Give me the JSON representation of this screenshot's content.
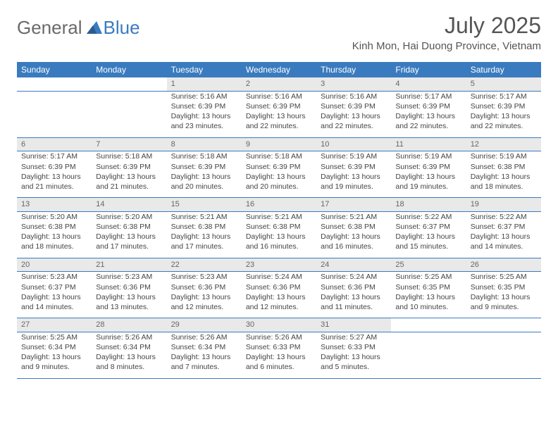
{
  "logo": {
    "general": "General",
    "blue": "Blue"
  },
  "title": "July 2025",
  "location": "Kinh Mon, Hai Duong Province, Vietnam",
  "colors": {
    "header_bg": "#3a7bbf",
    "daynum_bg": "#e9e9e9",
    "border": "#3a7bbf",
    "text": "#444444",
    "title_text": "#555555",
    "logo_gray": "#6a6a6a",
    "logo_blue": "#3a7bbf",
    "background": "#ffffff"
  },
  "weekdays": [
    "Sunday",
    "Monday",
    "Tuesday",
    "Wednesday",
    "Thursday",
    "Friday",
    "Saturday"
  ],
  "weeks": [
    [
      null,
      null,
      {
        "n": "1",
        "sr": "5:16 AM",
        "ss": "6:39 PM",
        "dl": "13 hours and 23 minutes."
      },
      {
        "n": "2",
        "sr": "5:16 AM",
        "ss": "6:39 PM",
        "dl": "13 hours and 22 minutes."
      },
      {
        "n": "3",
        "sr": "5:16 AM",
        "ss": "6:39 PM",
        "dl": "13 hours and 22 minutes."
      },
      {
        "n": "4",
        "sr": "5:17 AM",
        "ss": "6:39 PM",
        "dl": "13 hours and 22 minutes."
      },
      {
        "n": "5",
        "sr": "5:17 AM",
        "ss": "6:39 PM",
        "dl": "13 hours and 22 minutes."
      }
    ],
    [
      {
        "n": "6",
        "sr": "5:17 AM",
        "ss": "6:39 PM",
        "dl": "13 hours and 21 minutes."
      },
      {
        "n": "7",
        "sr": "5:18 AM",
        "ss": "6:39 PM",
        "dl": "13 hours and 21 minutes."
      },
      {
        "n": "8",
        "sr": "5:18 AM",
        "ss": "6:39 PM",
        "dl": "13 hours and 20 minutes."
      },
      {
        "n": "9",
        "sr": "5:18 AM",
        "ss": "6:39 PM",
        "dl": "13 hours and 20 minutes."
      },
      {
        "n": "10",
        "sr": "5:19 AM",
        "ss": "6:39 PM",
        "dl": "13 hours and 19 minutes."
      },
      {
        "n": "11",
        "sr": "5:19 AM",
        "ss": "6:39 PM",
        "dl": "13 hours and 19 minutes."
      },
      {
        "n": "12",
        "sr": "5:19 AM",
        "ss": "6:38 PM",
        "dl": "13 hours and 18 minutes."
      }
    ],
    [
      {
        "n": "13",
        "sr": "5:20 AM",
        "ss": "6:38 PM",
        "dl": "13 hours and 18 minutes."
      },
      {
        "n": "14",
        "sr": "5:20 AM",
        "ss": "6:38 PM",
        "dl": "13 hours and 17 minutes."
      },
      {
        "n": "15",
        "sr": "5:21 AM",
        "ss": "6:38 PM",
        "dl": "13 hours and 17 minutes."
      },
      {
        "n": "16",
        "sr": "5:21 AM",
        "ss": "6:38 PM",
        "dl": "13 hours and 16 minutes."
      },
      {
        "n": "17",
        "sr": "5:21 AM",
        "ss": "6:38 PM",
        "dl": "13 hours and 16 minutes."
      },
      {
        "n": "18",
        "sr": "5:22 AM",
        "ss": "6:37 PM",
        "dl": "13 hours and 15 minutes."
      },
      {
        "n": "19",
        "sr": "5:22 AM",
        "ss": "6:37 PM",
        "dl": "13 hours and 14 minutes."
      }
    ],
    [
      {
        "n": "20",
        "sr": "5:23 AM",
        "ss": "6:37 PM",
        "dl": "13 hours and 14 minutes."
      },
      {
        "n": "21",
        "sr": "5:23 AM",
        "ss": "6:36 PM",
        "dl": "13 hours and 13 minutes."
      },
      {
        "n": "22",
        "sr": "5:23 AM",
        "ss": "6:36 PM",
        "dl": "13 hours and 12 minutes."
      },
      {
        "n": "23",
        "sr": "5:24 AM",
        "ss": "6:36 PM",
        "dl": "13 hours and 12 minutes."
      },
      {
        "n": "24",
        "sr": "5:24 AM",
        "ss": "6:36 PM",
        "dl": "13 hours and 11 minutes."
      },
      {
        "n": "25",
        "sr": "5:25 AM",
        "ss": "6:35 PM",
        "dl": "13 hours and 10 minutes."
      },
      {
        "n": "26",
        "sr": "5:25 AM",
        "ss": "6:35 PM",
        "dl": "13 hours and 9 minutes."
      }
    ],
    [
      {
        "n": "27",
        "sr": "5:25 AM",
        "ss": "6:34 PM",
        "dl": "13 hours and 9 minutes."
      },
      {
        "n": "28",
        "sr": "5:26 AM",
        "ss": "6:34 PM",
        "dl": "13 hours and 8 minutes."
      },
      {
        "n": "29",
        "sr": "5:26 AM",
        "ss": "6:34 PM",
        "dl": "13 hours and 7 minutes."
      },
      {
        "n": "30",
        "sr": "5:26 AM",
        "ss": "6:33 PM",
        "dl": "13 hours and 6 minutes."
      },
      {
        "n": "31",
        "sr": "5:27 AM",
        "ss": "6:33 PM",
        "dl": "13 hours and 5 minutes."
      },
      null,
      null
    ]
  ],
  "labels": {
    "sunrise": "Sunrise: ",
    "sunset": "Sunset: ",
    "daylight": "Daylight: "
  }
}
